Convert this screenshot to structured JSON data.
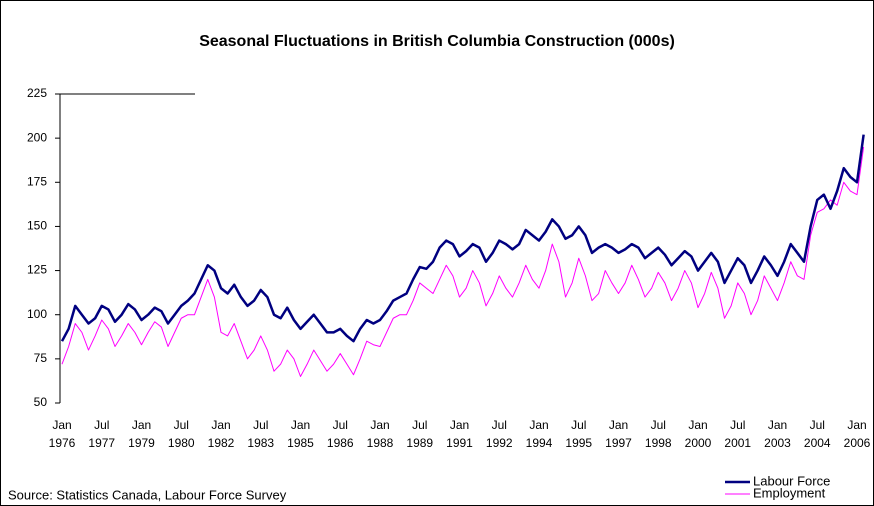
{
  "chart_data": {
    "type": "line",
    "title": "Seasonal Fluctuations in British Columbia Construction (000s)",
    "source": "Source:  Statistics Canada, Labour Force Survey",
    "categories": [
      "Jan 1976",
      null,
      null,
      null,
      null,
      null,
      "Jul 1977",
      null,
      null,
      null,
      null,
      null,
      "Jan 1979",
      null,
      null,
      null,
      null,
      null,
      "Jul 1980",
      null,
      null,
      null,
      null,
      null,
      "Jan 1982",
      null,
      null,
      null,
      null,
      null,
      "Jul 1983",
      null,
      null,
      null,
      null,
      null,
      "Jan 1985",
      null,
      null,
      null,
      null,
      null,
      "Jul 1986",
      null,
      null,
      null,
      null,
      null,
      "Jan 1988",
      null,
      null,
      null,
      null,
      null,
      "Jul 1989",
      null,
      null,
      null,
      null,
      null,
      "Jan 1991",
      null,
      null,
      null,
      null,
      null,
      "Jul 1992",
      null,
      null,
      null,
      null,
      null,
      "Jan 1994",
      null,
      null,
      null,
      null,
      null,
      "Jul 1995",
      null,
      null,
      null,
      null,
      null,
      "Jan 1997",
      null,
      null,
      null,
      null,
      null,
      "Jul 1998",
      null,
      null,
      null,
      null,
      null,
      "Jan 2000",
      null,
      null,
      null,
      null,
      null,
      "Jul 2001",
      null,
      null,
      null,
      null,
      null,
      "Jan 2003",
      null,
      null,
      null,
      null,
      null,
      "Jul 2004",
      null,
      null,
      null,
      null,
      null,
      "Jan 2006",
      null
    ],
    "series": [
      {
        "name": "Labour Force",
        "color": "#000080",
        "values": [
          85,
          92,
          105,
          100,
          95,
          98,
          105,
          103,
          96,
          100,
          106,
          103,
          97,
          100,
          104,
          102,
          95,
          100,
          105,
          108,
          112,
          120,
          128,
          125,
          115,
          112,
          117,
          110,
          105,
          108,
          114,
          110,
          100,
          98,
          104,
          97,
          92,
          96,
          100,
          95,
          90,
          90,
          92,
          88,
          85,
          92,
          97,
          95,
          97,
          102,
          108,
          110,
          112,
          120,
          127,
          126,
          130,
          138,
          142,
          140,
          133,
          136,
          140,
          138,
          130,
          135,
          142,
          140,
          137,
          140,
          148,
          145,
          142,
          147,
          154,
          150,
          143,
          145,
          150,
          145,
          135,
          138,
          140,
          138,
          135,
          137,
          140,
          138,
          132,
          135,
          138,
          134,
          128,
          132,
          136,
          133,
          125,
          130,
          135,
          130,
          118,
          125,
          132,
          128,
          118,
          125,
          133,
          128,
          122,
          130,
          140,
          135,
          130,
          150,
          165,
          168,
          160,
          170,
          183,
          178,
          175,
          202
        ]
      },
      {
        "name": "Employment",
        "color": "#ff00ff",
        "values": [
          72,
          82,
          95,
          90,
          80,
          88,
          97,
          92,
          82,
          88,
          95,
          90,
          83,
          90,
          96,
          93,
          82,
          90,
          98,
          100,
          100,
          110,
          120,
          110,
          90,
          88,
          95,
          85,
          75,
          80,
          88,
          80,
          68,
          72,
          80,
          75,
          65,
          72,
          80,
          74,
          68,
          72,
          78,
          72,
          66,
          75,
          85,
          83,
          82,
          90,
          98,
          100,
          100,
          108,
          118,
          115,
          112,
          120,
          128,
          122,
          110,
          115,
          125,
          118,
          105,
          112,
          122,
          115,
          110,
          118,
          128,
          120,
          115,
          125,
          140,
          130,
          110,
          118,
          132,
          122,
          108,
          112,
          125,
          118,
          112,
          118,
          128,
          120,
          110,
          115,
          124,
          118,
          108,
          115,
          125,
          118,
          104,
          112,
          124,
          115,
          98,
          105,
          118,
          112,
          100,
          108,
          122,
          115,
          108,
          118,
          130,
          122,
          120,
          145,
          158,
          160,
          165,
          162,
          175,
          170,
          168,
          195
        ]
      }
    ],
    "ylim": [
      50,
      225
    ],
    "yticks": [
      50,
      75,
      100,
      125,
      150,
      175,
      200,
      225
    ],
    "grid": false,
    "legend": "lower right"
  }
}
